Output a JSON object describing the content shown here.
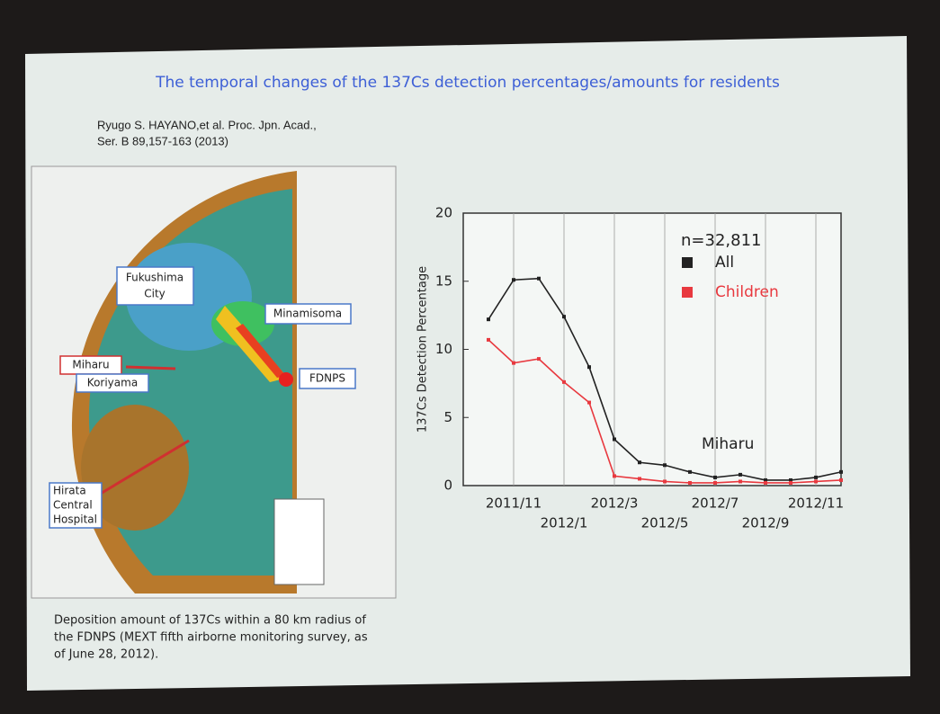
{
  "slide_title": "The temporal changes of the 137Cs detection percentages/amounts for residents",
  "citation": [
    "Ryugo S. HAYANO,et al. Proc. Jpn. Acad.,",
    "Ser. B 89,157-163 (2013)"
  ],
  "map_labels": {
    "fukushima_city": [
      "Fukushima",
      "City"
    ],
    "minamisoma": "Minamisoma",
    "miharu": "Miharu",
    "koriyama": "Koriyama",
    "fdnps": "FDNPS",
    "hirata": [
      "Hirata",
      "Central",
      "Hospital"
    ]
  },
  "caption": [
    "Deposition amount of 137Cs within a 80 km radius of",
    "the FDNPS (MEXT fifth airborne monitoring survey, as",
    "of June 28, 2012)."
  ],
  "chart_data": {
    "type": "line",
    "y_label": "137Cs Detection Percentage",
    "annotations": [
      "n=32,811",
      "Miharu"
    ],
    "x": [
      "2011/10",
      "2011/11",
      "2011/12",
      "2012/1",
      "2012/2",
      "2012/3",
      "2012/4",
      "2012/5",
      "2012/6",
      "2012/7",
      "2012/8",
      "2012/9",
      "2012/10",
      "2012/11",
      "2012/12"
    ],
    "xlim": [
      "2011/9",
      "2012/12"
    ],
    "xticks": [
      "2011/11",
      "2012/1",
      "2012/3",
      "2012/5",
      "2012/7",
      "2012/9",
      "2012/11"
    ],
    "ylim": [
      0,
      20
    ],
    "yticks": [
      0,
      5,
      10,
      15,
      20
    ],
    "grid": true,
    "series": [
      {
        "name": "All",
        "color": "#222222",
        "values": [
          12.2,
          15.1,
          15.2,
          12.4,
          8.7,
          3.4,
          1.7,
          1.5,
          1.0,
          0.6,
          0.8,
          0.4,
          0.4,
          0.6,
          1.0
        ]
      },
      {
        "name": "Children",
        "color": "#e8393f",
        "values": [
          10.7,
          9.0,
          9.3,
          7.6,
          6.1,
          0.7,
          0.5,
          0.3,
          0.2,
          0.2,
          0.3,
          0.2,
          0.2,
          0.3,
          0.4
        ]
      }
    ]
  }
}
